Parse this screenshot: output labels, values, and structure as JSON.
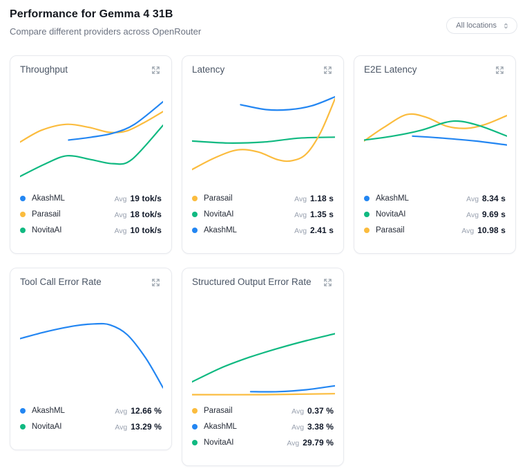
{
  "page": {
    "title": "Performance for Gemma 4 31B",
    "subtitle": "Compare different providers across OpenRouter"
  },
  "location_filter": {
    "value": "All locations",
    "icon": "chevrons-up-down-icon"
  },
  "legend_avg_label": "Avg",
  "colors": {
    "AkashML": "#2386f2",
    "Parasail": "#fbbc3e",
    "NovitaAI": "#10b981"
  },
  "icons": {
    "card_action": "expand-icon"
  },
  "charts": [
    {
      "title": "Throughput",
      "chart_data": {
        "type": "line",
        "note": "points are [x_percent, y_percent_from_top] of plot area, no axes shown",
        "series": [
          {
            "name": "Parasail",
            "points": [
              [
                0,
                58
              ],
              [
                15,
                46
              ],
              [
                32,
                40
              ],
              [
                48,
                43
              ],
              [
                62,
                48
              ],
              [
                74,
                47
              ],
              [
                87,
                38
              ],
              [
                100,
                27
              ]
            ]
          },
          {
            "name": "AkashML",
            "points": [
              [
                34,
                56
              ],
              [
                50,
                53
              ],
              [
                65,
                49
              ],
              [
                80,
                40
              ],
              [
                100,
                17
              ]
            ]
          },
          {
            "name": "NovitaAI",
            "points": [
              [
                0,
                93
              ],
              [
                18,
                80
              ],
              [
                33,
                72
              ],
              [
                50,
                76
              ],
              [
                65,
                80
              ],
              [
                78,
                76
              ],
              [
                100,
                41
              ]
            ]
          }
        ]
      },
      "legend": [
        {
          "provider": "AkashML",
          "avg": "19 tok/s"
        },
        {
          "provider": "Parasail",
          "avg": "18 tok/s"
        },
        {
          "provider": "NovitaAI",
          "avg": "10 tok/s"
        }
      ]
    },
    {
      "title": "Latency",
      "chart_data": {
        "type": "line",
        "series": [
          {
            "name": "NovitaAI",
            "points": [
              [
                0,
                57
              ],
              [
                25,
                59
              ],
              [
                50,
                58
              ],
              [
                75,
                54
              ],
              [
                100,
                53
              ]
            ]
          },
          {
            "name": "Parasail",
            "points": [
              [
                0,
                86
              ],
              [
                16,
                74
              ],
              [
                32,
                66
              ],
              [
                46,
                68
              ],
              [
                60,
                76
              ],
              [
                70,
                77
              ],
              [
                80,
                70
              ],
              [
                90,
                48
              ],
              [
                100,
                14
              ]
            ]
          },
          {
            "name": "AkashML",
            "points": [
              [
                34,
                20
              ],
              [
                52,
                25
              ],
              [
                68,
                25
              ],
              [
                84,
                21
              ],
              [
                100,
                12
              ]
            ]
          }
        ]
      },
      "legend": [
        {
          "provider": "Parasail",
          "avg": "1.18 s"
        },
        {
          "provider": "NovitaAI",
          "avg": "1.35 s"
        },
        {
          "provider": "AkashML",
          "avg": "2.41 s"
        }
      ]
    },
    {
      "title": "E2E Latency",
      "chart_data": {
        "type": "line",
        "series": [
          {
            "name": "Parasail",
            "points": [
              [
                0,
                57
              ],
              [
                14,
                43
              ],
              [
                30,
                30
              ],
              [
                44,
                33
              ],
              [
                58,
                42
              ],
              [
                72,
                44
              ],
              [
                85,
                40
              ],
              [
                100,
                31
              ]
            ]
          },
          {
            "name": "NovitaAI",
            "points": [
              [
                0,
                56
              ],
              [
                20,
                52
              ],
              [
                40,
                46
              ],
              [
                57,
                38
              ],
              [
                68,
                37
              ],
              [
                82,
                42
              ],
              [
                100,
                52
              ]
            ]
          },
          {
            "name": "AkashML",
            "points": [
              [
                34,
                52
              ],
              [
                55,
                54
              ],
              [
                78,
                57
              ],
              [
                100,
                61
              ]
            ]
          }
        ]
      },
      "legend": [
        {
          "provider": "AkashML",
          "avg": "8.34 s"
        },
        {
          "provider": "NovitaAI",
          "avg": "9.69 s"
        },
        {
          "provider": "Parasail",
          "avg": "10.98 s"
        }
      ]
    },
    {
      "title": "Tool Call Error Rate",
      "chart_data": {
        "type": "line",
        "series": [
          {
            "name": "AkashML",
            "points": [
              [
                0,
                42
              ],
              [
                18,
                35
              ],
              [
                38,
                29
              ],
              [
                52,
                27
              ],
              [
                63,
                28
              ],
              [
                75,
                38
              ],
              [
                88,
                62
              ],
              [
                100,
                92
              ]
            ]
          }
        ]
      },
      "legend": [
        {
          "provider": "AkashML",
          "avg": "12.66 %"
        },
        {
          "provider": "NovitaAI",
          "avg": "13.29 %"
        }
      ]
    },
    {
      "title": "Structured Output Error Rate",
      "chart_data": {
        "type": "line",
        "series": [
          {
            "name": "NovitaAI",
            "points": [
              [
                0,
                86
              ],
              [
                20,
                72
              ],
              [
                40,
                61
              ],
              [
                60,
                52
              ],
              [
                80,
                44
              ],
              [
                100,
                37
              ]
            ]
          },
          {
            "name": "Parasail",
            "points": [
              [
                0,
                99
              ],
              [
                50,
                99
              ],
              [
                100,
                98
              ]
            ]
          },
          {
            "name": "AkashML",
            "points": [
              [
                41,
                96
              ],
              [
                60,
                96
              ],
              [
                80,
                94
              ],
              [
                100,
                90
              ]
            ]
          }
        ]
      },
      "legend": [
        {
          "provider": "Parasail",
          "avg": "0.37 %"
        },
        {
          "provider": "AkashML",
          "avg": "3.38 %"
        },
        {
          "provider": "NovitaAI",
          "avg": "29.79 %"
        }
      ]
    }
  ]
}
